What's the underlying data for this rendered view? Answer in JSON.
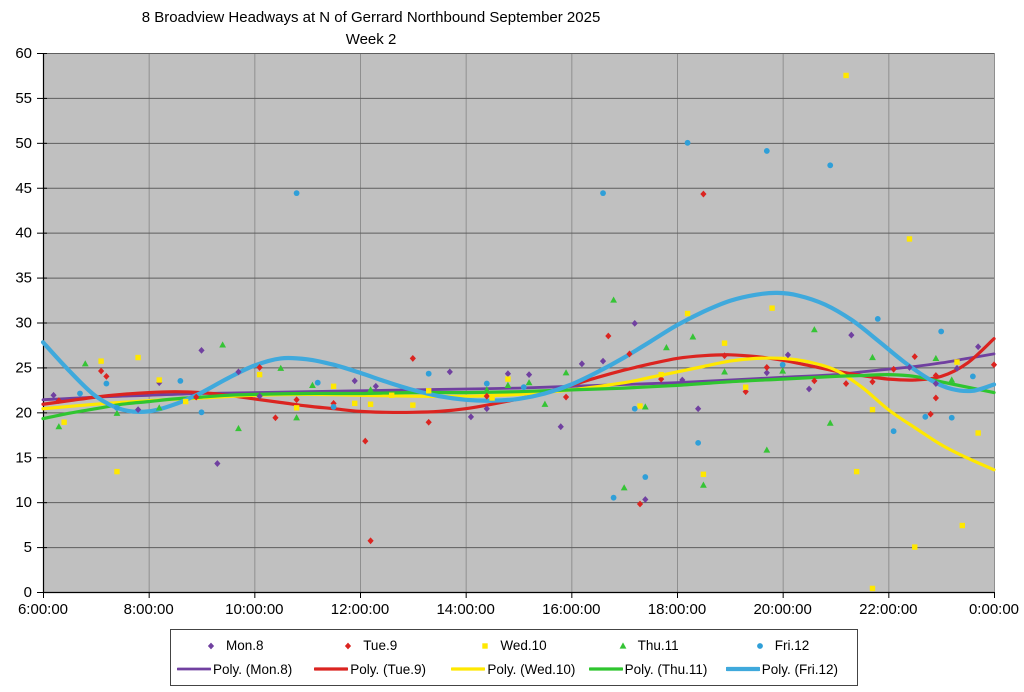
{
  "title": {
    "line1": "8 Broadview Headways at N of Gerrard Northbound September 2025",
    "line2": "Week 2"
  },
  "chart_data": {
    "type": "scatter",
    "title": "8 Broadview Headways at N of Gerrard Northbound September 2025 Week 2",
    "xlabel": "",
    "ylabel": "",
    "grid": true,
    "legend_position": "bottom",
    "plot_bg": "#c0c0c0",
    "h_grid_color": "#5e5e5e",
    "v_grid_color": "#8f8f8f",
    "axis_color": "#000000",
    "y_axis": {
      "min": 0,
      "max": 60,
      "step": 5,
      "tick_labels": [
        "0",
        "5",
        "10",
        "15",
        "20",
        "25",
        "30",
        "35",
        "40",
        "45",
        "50",
        "55",
        "60"
      ]
    },
    "x_axis": {
      "hours": [
        6,
        8,
        10,
        12,
        14,
        16,
        18,
        20,
        22,
        24
      ],
      "tick_labels": [
        "6:00:00",
        "8:00:00",
        "10:00:00",
        "12:00:00",
        "14:00:00",
        "16:00:00",
        "18:00:00",
        "20:00:00",
        "22:00:00",
        "0:00:00"
      ]
    },
    "series": [
      {
        "name": "Mon.8",
        "marker": "diamond",
        "color": "#7040a0",
        "points": [
          [
            6.2,
            21.9
          ],
          [
            7.8,
            20.3
          ],
          [
            8.2,
            23.3
          ],
          [
            9.0,
            26.9
          ],
          [
            9.3,
            14.3
          ],
          [
            9.7,
            24.5
          ],
          [
            10.1,
            21.8
          ],
          [
            11.9,
            23.5
          ],
          [
            12.3,
            22.9
          ],
          [
            13.7,
            24.5
          ],
          [
            14.1,
            19.5
          ],
          [
            14.4,
            20.4
          ],
          [
            14.8,
            24.3
          ],
          [
            15.2,
            24.2
          ],
          [
            15.8,
            18.4
          ],
          [
            16.2,
            25.4
          ],
          [
            16.6,
            25.7
          ],
          [
            17.2,
            29.9
          ],
          [
            17.4,
            10.3
          ],
          [
            18.1,
            23.6
          ],
          [
            18.4,
            20.4
          ],
          [
            19.7,
            24.4
          ],
          [
            20.1,
            26.4
          ],
          [
            20.5,
            22.6
          ],
          [
            21.3,
            28.6
          ],
          [
            22.4,
            25.0
          ],
          [
            22.9,
            23.2
          ],
          [
            23.3,
            24.9
          ],
          [
            23.7,
            27.3
          ]
        ]
      },
      {
        "name": "Tue.9",
        "marker": "diamond",
        "color": "#db2420",
        "points": [
          [
            6.3,
            21.3
          ],
          [
            7.1,
            24.6
          ],
          [
            7.2,
            24.0
          ],
          [
            8.9,
            21.7
          ],
          [
            10.1,
            25.0
          ],
          [
            10.4,
            19.4
          ],
          [
            10.8,
            21.4
          ],
          [
            11.5,
            21.0
          ],
          [
            12.1,
            16.8
          ],
          [
            12.2,
            5.7
          ],
          [
            13.0,
            26.0
          ],
          [
            13.3,
            18.9
          ],
          [
            14.4,
            21.8
          ],
          [
            15.9,
            21.7
          ],
          [
            16.7,
            28.5
          ],
          [
            17.1,
            26.5
          ],
          [
            17.3,
            9.8
          ],
          [
            17.7,
            23.7
          ],
          [
            18.5,
            44.3
          ],
          [
            18.9,
            26.3
          ],
          [
            19.3,
            22.3
          ],
          [
            19.7,
            25.0
          ],
          [
            20.6,
            23.5
          ],
          [
            21.2,
            23.2
          ],
          [
            21.7,
            23.4
          ],
          [
            22.1,
            24.8
          ],
          [
            22.5,
            26.2
          ],
          [
            22.8,
            19.8
          ],
          [
            22.9,
            24.1
          ],
          [
            22.9,
            21.6
          ],
          [
            24.0,
            25.3
          ]
        ]
      },
      {
        "name": "Wed.10",
        "marker": "square",
        "color": "#ffe800",
        "points": [
          [
            6.4,
            18.9
          ],
          [
            7.1,
            25.7
          ],
          [
            7.4,
            13.4
          ],
          [
            7.8,
            26.1
          ],
          [
            8.2,
            23.6
          ],
          [
            8.7,
            21.2
          ],
          [
            10.1,
            24.2
          ],
          [
            10.8,
            20.5
          ],
          [
            11.5,
            22.9
          ],
          [
            11.9,
            21.0
          ],
          [
            12.2,
            20.9
          ],
          [
            12.6,
            21.9
          ],
          [
            13.0,
            20.8
          ],
          [
            13.3,
            22.4
          ],
          [
            14.5,
            21.6
          ],
          [
            14.8,
            23.7
          ],
          [
            17.3,
            20.7
          ],
          [
            17.7,
            24.2
          ],
          [
            18.2,
            31.0
          ],
          [
            18.5,
            13.1
          ],
          [
            18.9,
            27.7
          ],
          [
            19.3,
            22.8
          ],
          [
            19.8,
            31.6
          ],
          [
            21.2,
            57.5
          ],
          [
            21.4,
            13.4
          ],
          [
            21.7,
            20.3
          ],
          [
            21.7,
            0.4
          ],
          [
            22.4,
            39.3
          ],
          [
            22.5,
            5.0
          ],
          [
            23.3,
            25.6
          ],
          [
            23.4,
            7.4
          ],
          [
            23.7,
            17.7
          ]
        ]
      },
      {
        "name": "Thu.11",
        "marker": "triangle",
        "color": "#35c435",
        "points": [
          [
            6.3,
            18.4
          ],
          [
            6.8,
            25.4
          ],
          [
            7.4,
            19.9
          ],
          [
            8.2,
            20.5
          ],
          [
            9.4,
            27.5
          ],
          [
            9.7,
            18.2
          ],
          [
            10.5,
            24.9
          ],
          [
            10.8,
            19.4
          ],
          [
            11.1,
            23.0
          ],
          [
            12.2,
            22.5
          ],
          [
            14.4,
            22.5
          ],
          [
            14.8,
            23.0
          ],
          [
            15.2,
            23.3
          ],
          [
            15.5,
            20.9
          ],
          [
            15.9,
            24.4
          ],
          [
            16.8,
            32.5
          ],
          [
            17.0,
            11.6
          ],
          [
            17.4,
            20.6
          ],
          [
            17.8,
            27.2
          ],
          [
            18.3,
            28.4
          ],
          [
            18.5,
            11.9
          ],
          [
            18.9,
            24.5
          ],
          [
            19.7,
            15.8
          ],
          [
            20.0,
            24.6
          ],
          [
            20.6,
            29.2
          ],
          [
            20.9,
            18.8
          ],
          [
            21.7,
            26.1
          ],
          [
            22.9,
            26.0
          ],
          [
            23.2,
            23.6
          ]
        ]
      },
      {
        "name": "Fri.12",
        "marker": "circle",
        "color": "#2f9fd8",
        "points": [
          [
            6.7,
            22.1
          ],
          [
            7.2,
            23.2
          ],
          [
            7.4,
            20.5
          ],
          [
            8.6,
            23.5
          ],
          [
            9.0,
            20.0
          ],
          [
            10.8,
            44.4
          ],
          [
            11.2,
            23.3
          ],
          [
            11.5,
            20.6
          ],
          [
            13.3,
            24.3
          ],
          [
            14.4,
            23.2
          ],
          [
            15.1,
            22.8
          ],
          [
            16.6,
            44.4
          ],
          [
            16.8,
            10.5
          ],
          [
            17.2,
            20.4
          ],
          [
            17.4,
            12.8
          ],
          [
            18.2,
            50.0
          ],
          [
            18.4,
            16.6
          ],
          [
            19.7,
            49.1
          ],
          [
            20.0,
            25.3
          ],
          [
            20.9,
            47.5
          ],
          [
            21.8,
            30.4
          ],
          [
            22.1,
            17.9
          ],
          [
            22.7,
            19.5
          ],
          [
            23.0,
            29.0
          ],
          [
            23.2,
            19.4
          ],
          [
            23.6,
            24.0
          ]
        ]
      }
    ],
    "trends": [
      {
        "name": "Poly. (Mon.8)",
        "color": "#7040a0",
        "width": 2.8,
        "samples": [
          [
            6,
            21.4
          ],
          [
            7,
            21.7
          ],
          [
            8,
            21.9
          ],
          [
            9,
            22.1
          ],
          [
            10,
            22.2
          ],
          [
            11,
            22.3
          ],
          [
            12,
            22.4
          ],
          [
            13,
            22.5
          ],
          [
            14,
            22.6
          ],
          [
            15,
            22.7
          ],
          [
            16,
            22.9
          ],
          [
            17,
            23.1
          ],
          [
            18,
            23.3
          ],
          [
            19,
            23.6
          ],
          [
            20,
            23.9
          ],
          [
            21,
            24.2
          ],
          [
            21.5,
            24.5
          ],
          [
            22,
            24.8
          ],
          [
            22.5,
            25.1
          ],
          [
            23,
            25.5
          ],
          [
            23.5,
            26.0
          ],
          [
            24,
            26.5
          ]
        ]
      },
      {
        "name": "Poly. (Tue.9)",
        "color": "#db2420",
        "width": 3.2,
        "samples": [
          [
            6,
            20.9
          ],
          [
            6.5,
            21.3
          ],
          [
            7,
            21.7
          ],
          [
            7.5,
            22.0
          ],
          [
            8,
            22.2
          ],
          [
            8.5,
            22.3
          ],
          [
            9,
            22.2
          ],
          [
            9.5,
            21.9
          ],
          [
            10,
            21.5
          ],
          [
            10.5,
            21.1
          ],
          [
            11,
            20.7
          ],
          [
            11.5,
            20.4
          ],
          [
            12,
            20.1
          ],
          [
            12.5,
            20.0
          ],
          [
            13,
            20.0
          ],
          [
            13.5,
            20.1
          ],
          [
            14,
            20.4
          ],
          [
            14.5,
            20.9
          ],
          [
            15,
            21.5
          ],
          [
            15.5,
            22.2
          ],
          [
            16,
            23.0
          ],
          [
            16.5,
            23.9
          ],
          [
            17,
            24.7
          ],
          [
            17.5,
            25.4
          ],
          [
            18,
            26.0
          ],
          [
            18.5,
            26.3
          ],
          [
            19,
            26.4
          ],
          [
            19.5,
            26.2
          ],
          [
            20,
            25.8
          ],
          [
            20.5,
            25.2
          ],
          [
            21,
            24.6
          ],
          [
            21.5,
            24.1
          ],
          [
            22,
            23.7
          ],
          [
            22.5,
            23.6
          ],
          [
            23,
            24.0
          ],
          [
            23.5,
            25.5
          ],
          [
            24,
            28.2
          ]
        ]
      },
      {
        "name": "Poly. (Wed.10)",
        "color": "#ffe800",
        "width": 3.2,
        "samples": [
          [
            6,
            20.4
          ],
          [
            7,
            20.9
          ],
          [
            8,
            21.3
          ],
          [
            9,
            21.6
          ],
          [
            10,
            21.9
          ],
          [
            11,
            22.0
          ],
          [
            12,
            21.9
          ],
          [
            13,
            21.8
          ],
          [
            14,
            21.8
          ],
          [
            15,
            22.0
          ],
          [
            16,
            22.5
          ],
          [
            17,
            23.3
          ],
          [
            17.5,
            23.9
          ],
          [
            18,
            24.5
          ],
          [
            18.5,
            25.1
          ],
          [
            19,
            25.7
          ],
          [
            19.5,
            26.0
          ],
          [
            20,
            26.0
          ],
          [
            20.5,
            25.6
          ],
          [
            21,
            24.7
          ],
          [
            21.5,
            22.8
          ],
          [
            22,
            20.3
          ],
          [
            22.5,
            18.3
          ],
          [
            23,
            16.4
          ],
          [
            23.5,
            14.9
          ],
          [
            24,
            13.6
          ]
        ]
      },
      {
        "name": "Poly. (Thu.11)",
        "color": "#2fc52f",
        "width": 3.2,
        "samples": [
          [
            6,
            19.3
          ],
          [
            6.5,
            19.9
          ],
          [
            7,
            20.4
          ],
          [
            7.5,
            20.9
          ],
          [
            8,
            21.2
          ],
          [
            8.5,
            21.5
          ],
          [
            9,
            21.7
          ],
          [
            9.5,
            21.9
          ],
          [
            10,
            22.0
          ],
          [
            11,
            22.1
          ],
          [
            12,
            22.1
          ],
          [
            13,
            22.2
          ],
          [
            14,
            22.2
          ],
          [
            15,
            22.3
          ],
          [
            16,
            22.5
          ],
          [
            17,
            22.7
          ],
          [
            18,
            23.0
          ],
          [
            19,
            23.4
          ],
          [
            20,
            23.7
          ],
          [
            21,
            24.0
          ],
          [
            21.5,
            24.1
          ],
          [
            22,
            24.2
          ],
          [
            22.5,
            24.0
          ],
          [
            23,
            23.4
          ],
          [
            23.5,
            22.8
          ],
          [
            24,
            22.2
          ]
        ]
      },
      {
        "name": "Poly. (Fri.12)",
        "color": "#3fa9dc",
        "width": 4.2,
        "samples": [
          [
            6,
            27.8
          ],
          [
            6.5,
            24.6
          ],
          [
            7,
            21.8
          ],
          [
            7.5,
            20.3
          ],
          [
            8,
            20.1
          ],
          [
            8.5,
            20.9
          ],
          [
            9,
            22.2
          ],
          [
            9.5,
            23.8
          ],
          [
            10,
            25.2
          ],
          [
            10.5,
            26.0
          ],
          [
            11,
            25.9
          ],
          [
            11.5,
            25.3
          ],
          [
            12,
            24.4
          ],
          [
            12.5,
            23.4
          ],
          [
            13,
            22.5
          ],
          [
            13.5,
            21.8
          ],
          [
            14,
            21.4
          ],
          [
            14.5,
            21.3
          ],
          [
            15,
            21.5
          ],
          [
            15.5,
            22.1
          ],
          [
            16,
            23.1
          ],
          [
            16.5,
            24.5
          ],
          [
            17,
            26.1
          ],
          [
            17.5,
            27.9
          ],
          [
            18,
            29.7
          ],
          [
            18.5,
            31.2
          ],
          [
            19,
            32.4
          ],
          [
            19.5,
            33.1
          ],
          [
            19.9,
            33.3
          ],
          [
            20.3,
            33.0
          ],
          [
            20.8,
            32.0
          ],
          [
            21.3,
            30.3
          ],
          [
            21.8,
            28.0
          ],
          [
            22.3,
            25.6
          ],
          [
            22.8,
            23.6
          ],
          [
            23.2,
            22.6
          ],
          [
            23.6,
            22.4
          ],
          [
            24,
            23.1
          ]
        ]
      }
    ]
  }
}
